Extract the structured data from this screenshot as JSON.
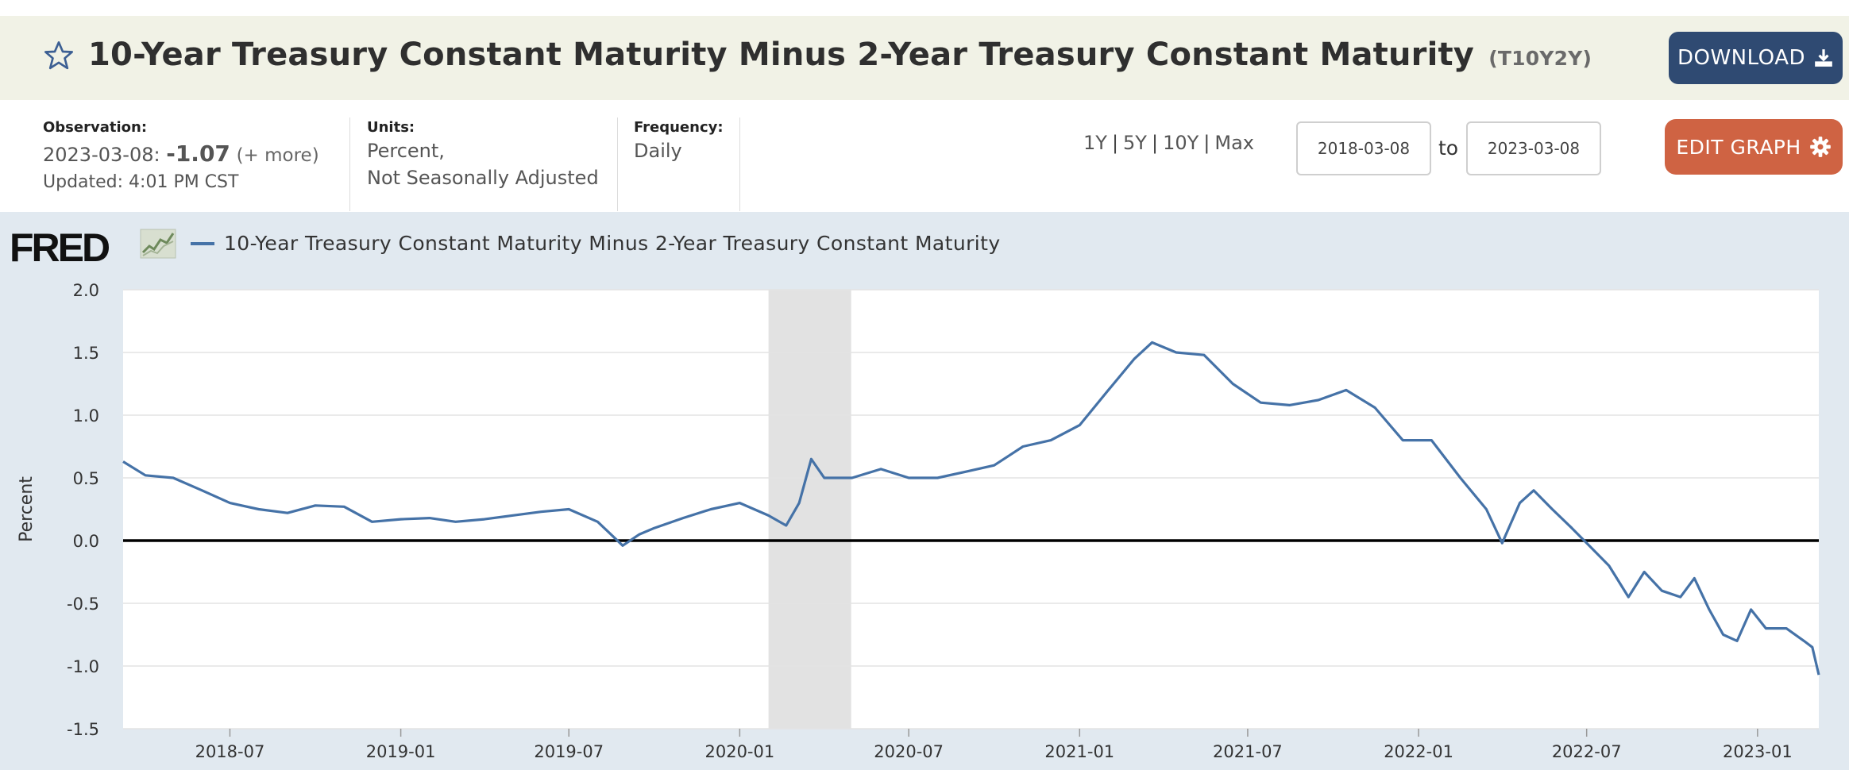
{
  "header": {
    "title": "10-Year Treasury Constant Maturity Minus 2-Year Treasury Constant Maturity",
    "series_id": "(T10Y2Y)",
    "download_label": "DOWNLOAD"
  },
  "meta": {
    "observation_label": "Observation:",
    "observation_date": "2023-03-08:",
    "observation_value": "-1.07",
    "more_link": "(+ more)",
    "updated": "Updated: 4:01 PM CST",
    "units_label": "Units:",
    "units_line1": "Percent,",
    "units_line2": "Not Seasonally Adjusted",
    "frequency_label": "Frequency:",
    "frequency_value": "Daily"
  },
  "controls": {
    "ranges": [
      "1Y",
      "5Y",
      "10Y",
      "Max"
    ],
    "start_date": "2018-03-08",
    "to_label": "to",
    "end_date": "2023-03-08",
    "edit_label": "EDIT GRAPH"
  },
  "colors": {
    "series": "#4572a7",
    "accent_download": "#2f4a72",
    "accent_edit": "#cf6343",
    "recession": "#e2e2e2"
  },
  "chart_data": {
    "type": "line",
    "logo_text": "FRED",
    "legend": "10-Year Treasury Constant Maturity Minus 2-Year Treasury Constant Maturity",
    "ylabel": "Percent",
    "ylim": [
      -1.5,
      2.0
    ],
    "yticks": [
      2.0,
      1.5,
      1.0,
      0.5,
      0.0,
      -0.5,
      -1.0,
      -1.5
    ],
    "ytick_labels": [
      "2.0",
      "1.5",
      "1.0",
      "0.5",
      "0.0",
      "-0.5",
      "-1.0",
      "-1.5"
    ],
    "x_range": [
      "2018-03-08",
      "2023-03-08"
    ],
    "xtick_labels": [
      "2018-07",
      "2019-01",
      "2019-07",
      "2020-01",
      "2020-07",
      "2021-01",
      "2021-07",
      "2022-01",
      "2022-07",
      "2023-01"
    ],
    "xtick_dates": [
      "2018-07-01",
      "2019-01-01",
      "2019-07-01",
      "2020-01-01",
      "2020-07-01",
      "2021-01-01",
      "2021-07-01",
      "2022-01-01",
      "2022-07-01",
      "2023-01-01"
    ],
    "recession": {
      "start": "2020-02-01",
      "end": "2020-04-30"
    },
    "zero_line": 0.0,
    "series": [
      {
        "name": "T10Y2Y",
        "points": [
          [
            "2018-03-08",
            0.63
          ],
          [
            "2018-04-01",
            0.52
          ],
          [
            "2018-05-01",
            0.5
          ],
          [
            "2018-06-01",
            0.4
          ],
          [
            "2018-07-01",
            0.3
          ],
          [
            "2018-08-01",
            0.25
          ],
          [
            "2018-09-01",
            0.22
          ],
          [
            "2018-10-01",
            0.28
          ],
          [
            "2018-11-01",
            0.27
          ],
          [
            "2018-12-01",
            0.15
          ],
          [
            "2019-01-01",
            0.17
          ],
          [
            "2019-02-01",
            0.18
          ],
          [
            "2019-03-01",
            0.15
          ],
          [
            "2019-04-01",
            0.17
          ],
          [
            "2019-05-01",
            0.2
          ],
          [
            "2019-06-01",
            0.23
          ],
          [
            "2019-07-01",
            0.25
          ],
          [
            "2019-08-01",
            0.15
          ],
          [
            "2019-08-28",
            -0.04
          ],
          [
            "2019-09-15",
            0.05
          ],
          [
            "2019-10-01",
            0.1
          ],
          [
            "2019-11-01",
            0.18
          ],
          [
            "2019-12-01",
            0.25
          ],
          [
            "2020-01-01",
            0.3
          ],
          [
            "2020-02-01",
            0.2
          ],
          [
            "2020-02-20",
            0.12
          ],
          [
            "2020-03-05",
            0.3
          ],
          [
            "2020-03-18",
            0.65
          ],
          [
            "2020-04-01",
            0.5
          ],
          [
            "2020-05-01",
            0.5
          ],
          [
            "2020-06-01",
            0.57
          ],
          [
            "2020-07-01",
            0.5
          ],
          [
            "2020-08-01",
            0.5
          ],
          [
            "2020-09-01",
            0.55
          ],
          [
            "2020-10-01",
            0.6
          ],
          [
            "2020-11-01",
            0.75
          ],
          [
            "2020-12-01",
            0.8
          ],
          [
            "2021-01-01",
            0.92
          ],
          [
            "2021-02-01",
            1.2
          ],
          [
            "2021-03-01",
            1.45
          ],
          [
            "2021-03-20",
            1.58
          ],
          [
            "2021-04-15",
            1.5
          ],
          [
            "2021-05-15",
            1.48
          ],
          [
            "2021-06-15",
            1.25
          ],
          [
            "2021-07-15",
            1.1
          ],
          [
            "2021-08-15",
            1.08
          ],
          [
            "2021-09-15",
            1.12
          ],
          [
            "2021-10-15",
            1.2
          ],
          [
            "2021-11-15",
            1.06
          ],
          [
            "2021-12-15",
            0.8
          ],
          [
            "2022-01-15",
            0.8
          ],
          [
            "2022-02-15",
            0.5
          ],
          [
            "2022-03-15",
            0.25
          ],
          [
            "2022-04-01",
            -0.02
          ],
          [
            "2022-04-20",
            0.3
          ],
          [
            "2022-05-05",
            0.4
          ],
          [
            "2022-05-25",
            0.25
          ],
          [
            "2022-06-15",
            0.1
          ],
          [
            "2022-07-05",
            -0.05
          ],
          [
            "2022-07-25",
            -0.2
          ],
          [
            "2022-08-15",
            -0.45
          ],
          [
            "2022-09-01",
            -0.25
          ],
          [
            "2022-09-20",
            -0.4
          ],
          [
            "2022-10-10",
            -0.45
          ],
          [
            "2022-10-25",
            -0.3
          ],
          [
            "2022-11-10",
            -0.55
          ],
          [
            "2022-11-25",
            -0.75
          ],
          [
            "2022-12-10",
            -0.8
          ],
          [
            "2022-12-25",
            -0.55
          ],
          [
            "2023-01-10",
            -0.7
          ],
          [
            "2023-02-01",
            -0.7
          ],
          [
            "2023-02-20",
            -0.8
          ],
          [
            "2023-03-01",
            -0.85
          ],
          [
            "2023-03-08",
            -1.07
          ]
        ]
      }
    ]
  }
}
